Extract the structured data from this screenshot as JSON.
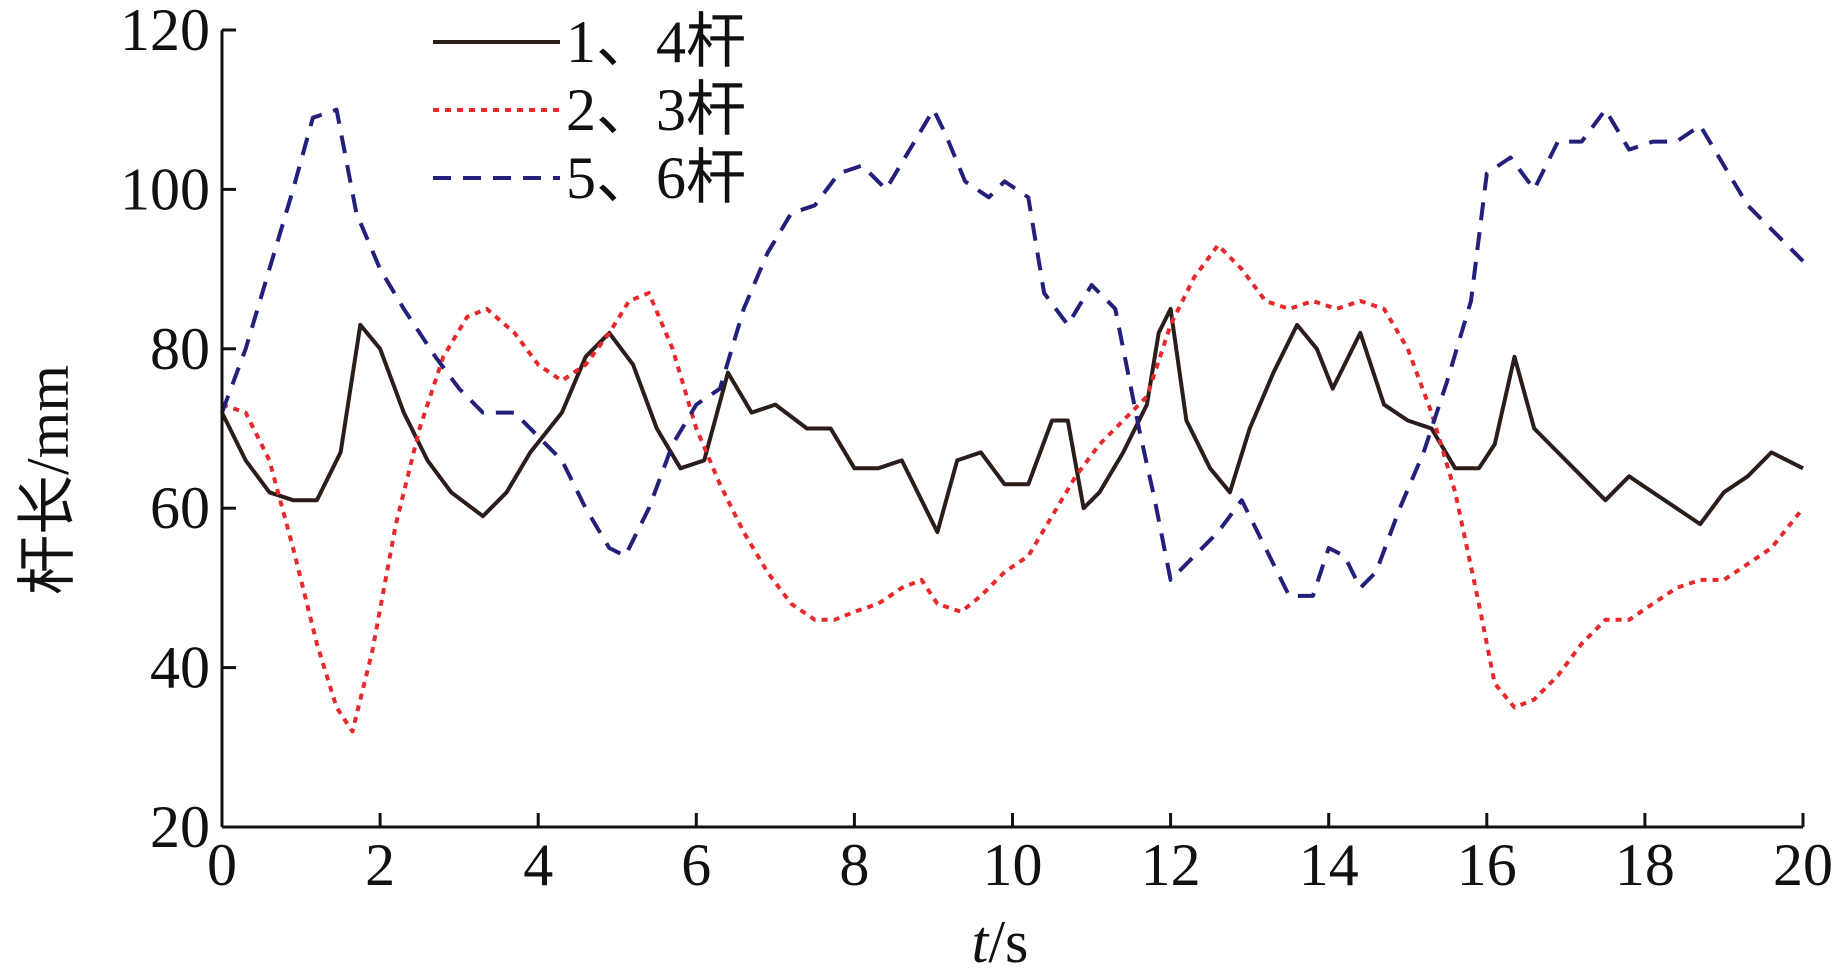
{
  "chart_data": {
    "type": "line",
    "title": "",
    "xlabel_var": "t",
    "xlabel_unit": "/s",
    "ylabel": "杆长/mm",
    "xlim": [
      0,
      20
    ],
    "ylim": [
      20,
      120
    ],
    "xticks": [
      "0",
      "2",
      "4",
      "6",
      "8",
      "10",
      "12",
      "14",
      "16",
      "18",
      "20"
    ],
    "yticks": [
      "20",
      "40",
      "60",
      "80",
      "100",
      "120"
    ],
    "grid": false,
    "legend_position": "top-left",
    "series": [
      {
        "name": "1、4杆",
        "color": "#2b1d1a",
        "style": "solid",
        "x": [
          0,
          0.3,
          0.6,
          0.9,
          1.2,
          1.5,
          1.75,
          2.0,
          2.3,
          2.6,
          2.9,
          3.3,
          3.6,
          3.9,
          4.3,
          4.6,
          4.9,
          5.2,
          5.5,
          5.8,
          6.1,
          6.4,
          6.7,
          7.0,
          7.4,
          7.7,
          8.0,
          8.3,
          8.6,
          8.9,
          9.05,
          9.3,
          9.6,
          9.9,
          10.2,
          10.5,
          10.7,
          10.9,
          11.1,
          11.4,
          11.7,
          11.85,
          12.0,
          12.2,
          12.5,
          12.75,
          13.0,
          13.3,
          13.6,
          13.85,
          14.05,
          14.4,
          14.7,
          15.0,
          15.3,
          15.6,
          15.9,
          16.1,
          16.35,
          16.6,
          16.9,
          17.2,
          17.5,
          17.8,
          18.1,
          18.4,
          18.7,
          19.0,
          19.3,
          19.6,
          20.0
        ],
        "y": [
          72,
          66,
          62,
          61,
          61,
          67,
          83,
          80,
          72,
          66,
          62,
          59,
          62,
          67,
          72,
          79,
          82,
          78,
          70,
          65,
          66,
          77,
          72,
          73,
          70,
          70,
          65,
          65,
          66,
          60,
          57,
          66,
          67,
          63,
          63,
          71,
          71,
          60,
          62,
          67,
          73,
          82,
          85,
          71,
          65,
          62,
          70,
          77,
          83,
          80,
          75,
          82,
          73,
          71,
          70,
          65,
          65,
          68,
          79,
          70,
          67,
          64,
          61,
          64,
          62,
          60,
          58,
          62,
          64,
          67,
          65
        ]
      },
      {
        "name": "2、3杆",
        "color": "#e8292b",
        "style": "dotted",
        "x": [
          0,
          0.3,
          0.6,
          0.9,
          1.2,
          1.45,
          1.65,
          1.9,
          2.2,
          2.5,
          2.8,
          3.1,
          3.35,
          3.7,
          4.0,
          4.3,
          4.6,
          4.9,
          5.15,
          5.4,
          5.7,
          6.0,
          6.3,
          6.6,
          6.9,
          7.2,
          7.5,
          7.75,
          8.0,
          8.3,
          8.6,
          8.85,
          9.05,
          9.35,
          9.6,
          9.9,
          10.2,
          10.5,
          10.8,
          11.1,
          11.4,
          11.7,
          12.0,
          12.3,
          12.6,
          12.9,
          13.2,
          13.5,
          13.8,
          14.1,
          14.4,
          14.7,
          15.0,
          15.3,
          15.6,
          15.9,
          16.1,
          16.35,
          16.6,
          16.9,
          17.2,
          17.5,
          17.8,
          18.1,
          18.4,
          18.7,
          19.0,
          19.3,
          19.6,
          20.0
        ],
        "y": [
          73,
          72,
          66,
          55,
          43,
          35,
          32,
          42,
          58,
          70,
          79,
          84,
          85,
          82,
          78,
          76,
          78,
          82,
          86,
          87,
          80,
          70,
          63,
          57,
          52,
          48,
          46,
          46,
          47,
          48,
          50,
          51,
          48,
          47,
          49,
          52,
          54,
          59,
          64,
          68,
          71,
          74,
          83,
          89,
          93,
          90,
          86,
          85,
          86,
          85,
          86,
          85,
          80,
          72,
          62,
          48,
          38,
          35,
          36,
          39,
          43,
          46,
          46,
          48,
          50,
          51,
          51,
          53,
          55,
          60
        ]
      },
      {
        "name": "5、6杆",
        "color": "#22207a",
        "style": "dashed",
        "x": [
          0,
          0.3,
          0.6,
          0.9,
          1.15,
          1.45,
          1.7,
          2.0,
          2.3,
          2.7,
          3.0,
          3.3,
          3.7,
          4.0,
          4.3,
          4.6,
          4.9,
          5.1,
          5.4,
          5.7,
          6.0,
          6.3,
          6.6,
          6.9,
          7.2,
          7.5,
          7.8,
          8.1,
          8.4,
          8.7,
          9.0,
          9.15,
          9.4,
          9.7,
          9.9,
          10.2,
          10.4,
          10.7,
          11.0,
          11.3,
          11.6,
          11.8,
          12.0,
          12.3,
          12.6,
          12.9,
          13.2,
          13.5,
          13.8,
          14.0,
          14.2,
          14.4,
          14.6,
          14.9,
          15.2,
          15.5,
          15.8,
          16.0,
          16.3,
          16.6,
          16.9,
          17.2,
          17.5,
          17.8,
          18.1,
          18.4,
          18.7,
          19.0,
          19.3,
          19.6,
          20.0
        ],
        "y": [
          72,
          80,
          90,
          100,
          109,
          110,
          97,
          90,
          85,
          79,
          75,
          72,
          72,
          69,
          66,
          60,
          55,
          54,
          60,
          68,
          73,
          75,
          85,
          92,
          97,
          98,
          102,
          103,
          100,
          105,
          110,
          107,
          101,
          99,
          101,
          99,
          87,
          83,
          88,
          85,
          70,
          61,
          51,
          54,
          57,
          61,
          55,
          49,
          49,
          55,
          54,
          50,
          52,
          60,
          67,
          76,
          86,
          102,
          104,
          100,
          106,
          106,
          110,
          105,
          106,
          106,
          108,
          103,
          98,
          95,
          91
        ]
      }
    ]
  }
}
